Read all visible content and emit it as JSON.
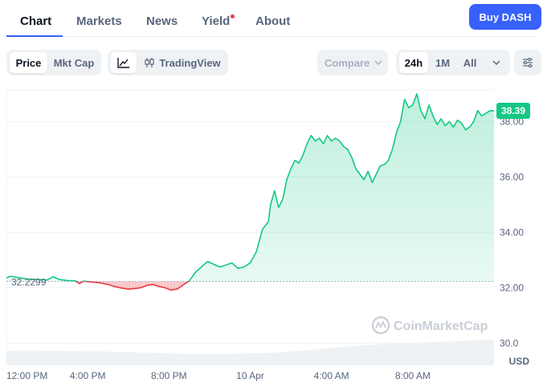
{
  "tabs": [
    {
      "label": "Chart",
      "active": true
    },
    {
      "label": "Markets",
      "active": false
    },
    {
      "label": "News",
      "active": false
    },
    {
      "label": "Yield",
      "active": false,
      "has_dot": true
    },
    {
      "label": "About",
      "active": false
    }
  ],
  "buy_button": "Buy DASH",
  "toolbar": {
    "metric": [
      "Price",
      "Mkt Cap"
    ],
    "metric_selected": "Price",
    "tradingview": "TradingView",
    "compare": "Compare",
    "ranges": [
      "24h",
      "1M",
      "All"
    ],
    "range_selected": "24h"
  },
  "colors": {
    "accent": "#3861fb",
    "up": "#16c784",
    "down": "#ea3943",
    "text_secondary": "#58667e"
  },
  "chart_data": {
    "type": "area",
    "currency": "USD",
    "reference_price": "32.2299",
    "current_price": "38.39",
    "y_ticks": [
      "38.00",
      "36.00",
      "34.00",
      "32.00",
      "30.0"
    ],
    "ylim": [
      29.2,
      39.2
    ],
    "x_ticks": [
      "12:00 PM",
      "4:00 PM",
      "8:00 PM",
      "10 Apr",
      "4:00 AM",
      "8:00 AM"
    ],
    "x_tick_hours": [
      0,
      4,
      8,
      12,
      16,
      20
    ],
    "xlim": [
      0,
      24
    ],
    "watermark": "CoinMarketCap",
    "series": [
      {
        "x": [
          0,
          0.2,
          0.5,
          1,
          1.5,
          2,
          2.3,
          2.6,
          3.0,
          3.4,
          3.6,
          3.8,
          4.0,
          4.3,
          4.6,
          5.0,
          5.3,
          5.6,
          6.0,
          6.3,
          6.6,
          6.9,
          7.2,
          7.5,
          7.8,
          8.1,
          8.4,
          8.7,
          9.0,
          9.3,
          9.6,
          9.9,
          10.2,
          10.5,
          10.8,
          11.1,
          11.4,
          11.7,
          12.0,
          12.3,
          12.6,
          12.9,
          13.0,
          13.2,
          13.4,
          13.6,
          13.8,
          14.0,
          14.2,
          14.4,
          14.6,
          14.8,
          15.0,
          15.2,
          15.4,
          15.6,
          15.8,
          16.0,
          16.2,
          16.4,
          16.6,
          16.8,
          17.0,
          17.2,
          17.4,
          17.6,
          17.8,
          18.0,
          18.2,
          18.4,
          18.6,
          18.8,
          19.0,
          19.2,
          19.4,
          19.6,
          19.8,
          20.0,
          20.2,
          20.4,
          20.6,
          20.8,
          21.0,
          21.2,
          21.4,
          21.6,
          21.8,
          22.0,
          22.2,
          22.4,
          22.6,
          22.8,
          23.0,
          23.2,
          23.4,
          23.6,
          23.8,
          24.0
        ],
        "y": [
          32.35,
          32.42,
          32.38,
          32.32,
          32.3,
          32.28,
          32.4,
          32.3,
          32.26,
          32.25,
          32.15,
          32.24,
          32.22,
          32.2,
          32.18,
          32.12,
          32.05,
          32.0,
          31.95,
          31.97,
          32.0,
          32.08,
          32.12,
          32.05,
          32.0,
          31.92,
          31.95,
          32.1,
          32.25,
          32.55,
          32.75,
          32.95,
          32.85,
          32.75,
          32.82,
          32.9,
          32.7,
          32.75,
          32.9,
          33.3,
          34.1,
          34.4,
          35.0,
          35.5,
          34.9,
          35.2,
          35.9,
          36.3,
          36.6,
          36.5,
          36.8,
          37.2,
          37.5,
          37.3,
          37.4,
          37.2,
          37.5,
          37.3,
          37.4,
          37.3,
          37.1,
          37.0,
          36.7,
          36.3,
          36.1,
          35.9,
          36.2,
          35.8,
          36.1,
          36.4,
          36.45,
          36.6,
          37.0,
          37.6,
          38.0,
          38.8,
          38.5,
          38.6,
          39.0,
          38.4,
          38.1,
          38.6,
          38.2,
          37.9,
          38.1,
          37.85,
          38.0,
          37.8,
          38.05,
          37.95,
          37.7,
          37.8,
          38.0,
          38.4,
          38.2,
          38.3,
          38.39,
          38.39
        ]
      }
    ],
    "volume": [
      0.55,
      0.56,
      0.55,
      0.54,
      0.53,
      0.52,
      0.5,
      0.48,
      0.45,
      0.43,
      0.42,
      0.43,
      0.45,
      0.48,
      0.52,
      0.58,
      0.66,
      0.72,
      0.78,
      0.82,
      0.85,
      0.88,
      0.9,
      0.95,
      0.97
    ]
  }
}
